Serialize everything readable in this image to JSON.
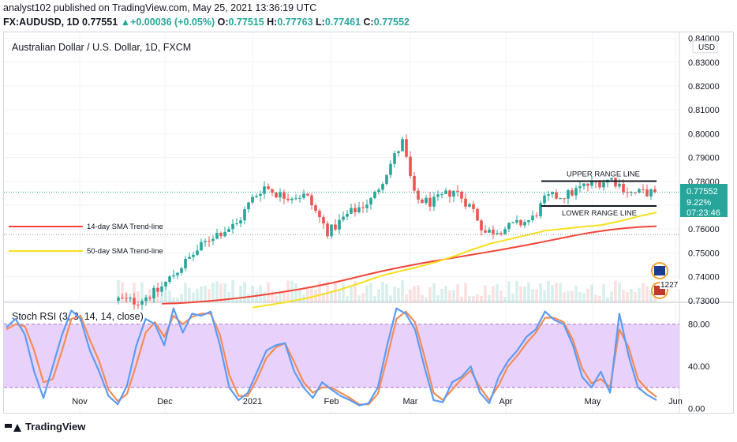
{
  "header": {
    "published_line": "analyst102 published on TradingView.com, May 25, 2021 13:36:19 UTC",
    "symbol": "FX:AUDUSD, 1D",
    "last_price": "0.77551",
    "change_arrow": "▲",
    "change": "+0.00036 (+0.05%)",
    "o_label": "O:",
    "o_value": "0.77515",
    "h_label": "H:",
    "h_value": "0.77763",
    "l_label": "L:",
    "l_value": "0.77461",
    "c_label": "C:",
    "c_value": "0.77552"
  },
  "footer": {
    "brand": "TradingView"
  },
  "colors": {
    "up": "#26a69a",
    "down": "#ef5350",
    "sma14": "#f44336",
    "sma50": "#f7e01d",
    "stoch_k": "#5b9cf6",
    "stoch_d": "#f48c55",
    "band_fill": "#e6cdfb",
    "band_line": "#b06ad0"
  },
  "chart_data": [
    {
      "type": "candlestick",
      "title": "Australian Dollar / U.S. Dollar, 1D, FXCM",
      "currency_label": "USD",
      "ylim": [
        0.7293,
        0.8425
      ],
      "y_ticks": [
        "0.84000",
        "0.83000",
        "0.82000",
        "0.81000",
        "0.80000",
        "0.79000",
        "0.78000",
        "0.77000",
        "0.76000",
        "0.75000",
        "0.74000",
        "0.73000"
      ],
      "x_ticks": [
        "Nov",
        "Dec",
        "2021",
        "Feb",
        "Mar",
        "Apr",
        "May",
        "Jun"
      ],
      "price_label": {
        "value": "0.77552",
        "percent": "9.22%",
        "countdown": "07:23:46"
      },
      "reference_line": 0.7577,
      "volume_tag": "1227",
      "annotations": [
        "UPPER RANGE LINE",
        "LOWER RANGE LINE"
      ],
      "upper_range_line": 0.7801,
      "lower_range_line": 0.7697,
      "series": [
        {
          "name": "14-day SMA Trend-line",
          "start": [
            0.7287,
            0.7289,
            0.7293,
            0.7298,
            0.7304,
            0.7311,
            0.7319,
            0.7328,
            0.7338,
            0.7349,
            0.7361,
            0.7374,
            0.7389,
            0.7405,
            0.742,
            0.7434,
            0.7447,
            0.7459,
            0.747,
            0.7481,
            0.7492,
            0.7503,
            0.7514,
            0.7526,
            0.7538,
            0.7551,
            0.7564,
            0.7577,
            0.7588,
            0.7597,
            0.7604,
            0.7609,
            0.7612
          ]
        },
        {
          "name": "50-day SMA Trend-line",
          "start": [
            0.7271,
            0.7283,
            0.7296,
            0.7311,
            0.733,
            0.7352,
            0.7377,
            0.7404,
            0.7423,
            0.7441,
            0.7462,
            0.7487,
            0.7515,
            0.754,
            0.7558,
            0.7576,
            0.7594,
            0.7602,
            0.761,
            0.7617,
            0.7633,
            0.7653,
            0.767
          ]
        }
      ]
    },
    {
      "type": "line",
      "title": "Stoch RSI (3, 3, 14, 14, close)",
      "ylim": [
        -4,
        100
      ],
      "y_ticks": [
        "80.00",
        "40.00",
        "0.00"
      ],
      "band": [
        20,
        80
      ],
      "series": [
        {
          "name": "K",
          "values": [
            77,
            85,
            70,
            35,
            10,
            40,
            70,
            93,
            85,
            55,
            35,
            12,
            4,
            22,
            60,
            85,
            80,
            60,
            95,
            72,
            90,
            88,
            92,
            60,
            20,
            8,
            15,
            35,
            55,
            60,
            62,
            35,
            20,
            10,
            25,
            18,
            12,
            8,
            3,
            5,
            20,
            60,
            95,
            90,
            75,
            40,
            8,
            6,
            25,
            30,
            40,
            15,
            5,
            30,
            45,
            55,
            68,
            75,
            92,
            84,
            80,
            60,
            30,
            20,
            35,
            15,
            90,
            50,
            20,
            13,
            8
          ]
        },
        {
          "name": "D",
          "values": [
            75,
            80,
            78,
            55,
            25,
            28,
            55,
            85,
            88,
            65,
            45,
            18,
            7,
            14,
            42,
            72,
            82,
            68,
            88,
            80,
            87,
            90,
            90,
            70,
            32,
            12,
            12,
            28,
            48,
            58,
            62,
            44,
            25,
            15,
            20,
            20,
            15,
            10,
            4,
            4,
            14,
            48,
            85,
            92,
            82,
            50,
            15,
            8,
            18,
            28,
            36,
            20,
            8,
            22,
            40,
            50,
            62,
            72,
            86,
            86,
            82,
            65,
            38,
            24,
            28,
            20,
            75,
            58,
            28,
            18,
            11
          ]
        }
      ]
    }
  ]
}
